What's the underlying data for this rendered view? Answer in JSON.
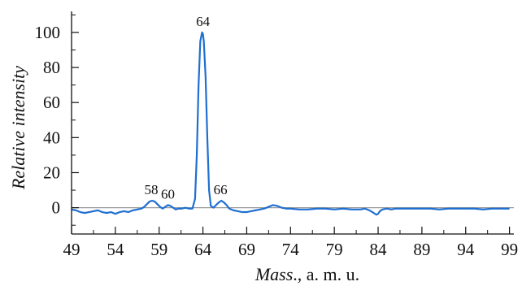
{
  "chart_data": {
    "type": "line",
    "title": "",
    "xlabel": {
      "italic": "Mass",
      "rest": "., a. m. u."
    },
    "ylabel": "Relative intensity",
    "xlim": [
      49,
      99.5
    ],
    "ylim": [
      -15,
      112
    ],
    "xticks": [
      49,
      54,
      59,
      64,
      69,
      74,
      79,
      84,
      89,
      94,
      99
    ],
    "yticks": [
      0,
      20,
      40,
      60,
      80,
      100
    ],
    "x_minor_step": 2.5,
    "y_minor_step": 10,
    "grid": false,
    "legend": "none",
    "baseline_color": "#9a9a9a",
    "series": [
      {
        "color": "#1f6fd1",
        "x": [
          49.0,
          49.5,
          50.0,
          50.5,
          51.0,
          51.5,
          52.0,
          52.5,
          53.0,
          53.5,
          54.0,
          54.5,
          55.0,
          55.5,
          56.0,
          56.5,
          57.0,
          57.3,
          57.6,
          57.9,
          58.2,
          58.5,
          58.8,
          59.1,
          59.4,
          59.7,
          60.0,
          60.3,
          60.6,
          60.9,
          61.2,
          61.6,
          62.0,
          62.4,
          62.8,
          63.1,
          63.3,
          63.5,
          63.7,
          63.9,
          64.0,
          64.1,
          64.3,
          64.5,
          64.7,
          64.9,
          65.2,
          65.5,
          65.8,
          66.1,
          66.4,
          66.7,
          67.0,
          67.5,
          68.0,
          68.5,
          69.0,
          69.5,
          70.0,
          70.5,
          71.0,
          71.5,
          72.0,
          72.5,
          73.0,
          73.5,
          74.0,
          75.0,
          76.0,
          77.0,
          78.0,
          79.0,
          80.0,
          81.0,
          82.0,
          82.5,
          83.0,
          83.5,
          83.8,
          84.0,
          84.2,
          84.5,
          85.0,
          85.5,
          86.0,
          87.0,
          88.0,
          89.0,
          90.0,
          91.0,
          92.0,
          93.0,
          94.0,
          95.0,
          96.0,
          97.0,
          98.0,
          99.0
        ],
        "y": [
          -1,
          -1.5,
          -2.5,
          -3,
          -2.5,
          -2,
          -1.5,
          -2.5,
          -3,
          -2.5,
          -3.5,
          -2.5,
          -2,
          -2.5,
          -1.5,
          -1,
          -0.5,
          0.5,
          2,
          3.5,
          4,
          3.5,
          2,
          0.5,
          -0.5,
          0.5,
          1.5,
          1,
          0,
          -1,
          -0.5,
          -0.5,
          0,
          -0.5,
          -0.5,
          5,
          30,
          70,
          95,
          100,
          99,
          95,
          75,
          40,
          10,
          1,
          0,
          1.5,
          3,
          4,
          3,
          1.5,
          -0.5,
          -1.5,
          -2,
          -2.5,
          -2.5,
          -2,
          -1.5,
          -1,
          -0.5,
          0.5,
          1.5,
          1,
          0,
          -0.5,
          -0.5,
          -1,
          -1,
          -0.5,
          -0.5,
          -1,
          -0.5,
          -1,
          -1,
          -0.5,
          -1.5,
          -3,
          -4,
          -3.5,
          -2,
          -1,
          -0.5,
          -1,
          -0.5,
          -0.5,
          -0.5,
          -0.5,
          -0.5,
          -1,
          -0.5,
          -0.5,
          -0.5,
          -0.5,
          -1,
          -0.5,
          -0.5,
          -0.5
        ]
      }
    ],
    "annotations": [
      {
        "text": "64",
        "x": 64.0,
        "y": 100
      },
      {
        "text": "58",
        "x": 58.1,
        "y": 4
      },
      {
        "text": "60",
        "x": 60.0,
        "y": 1.5
      },
      {
        "text": "66",
        "x": 66.0,
        "y": 4
      }
    ]
  }
}
